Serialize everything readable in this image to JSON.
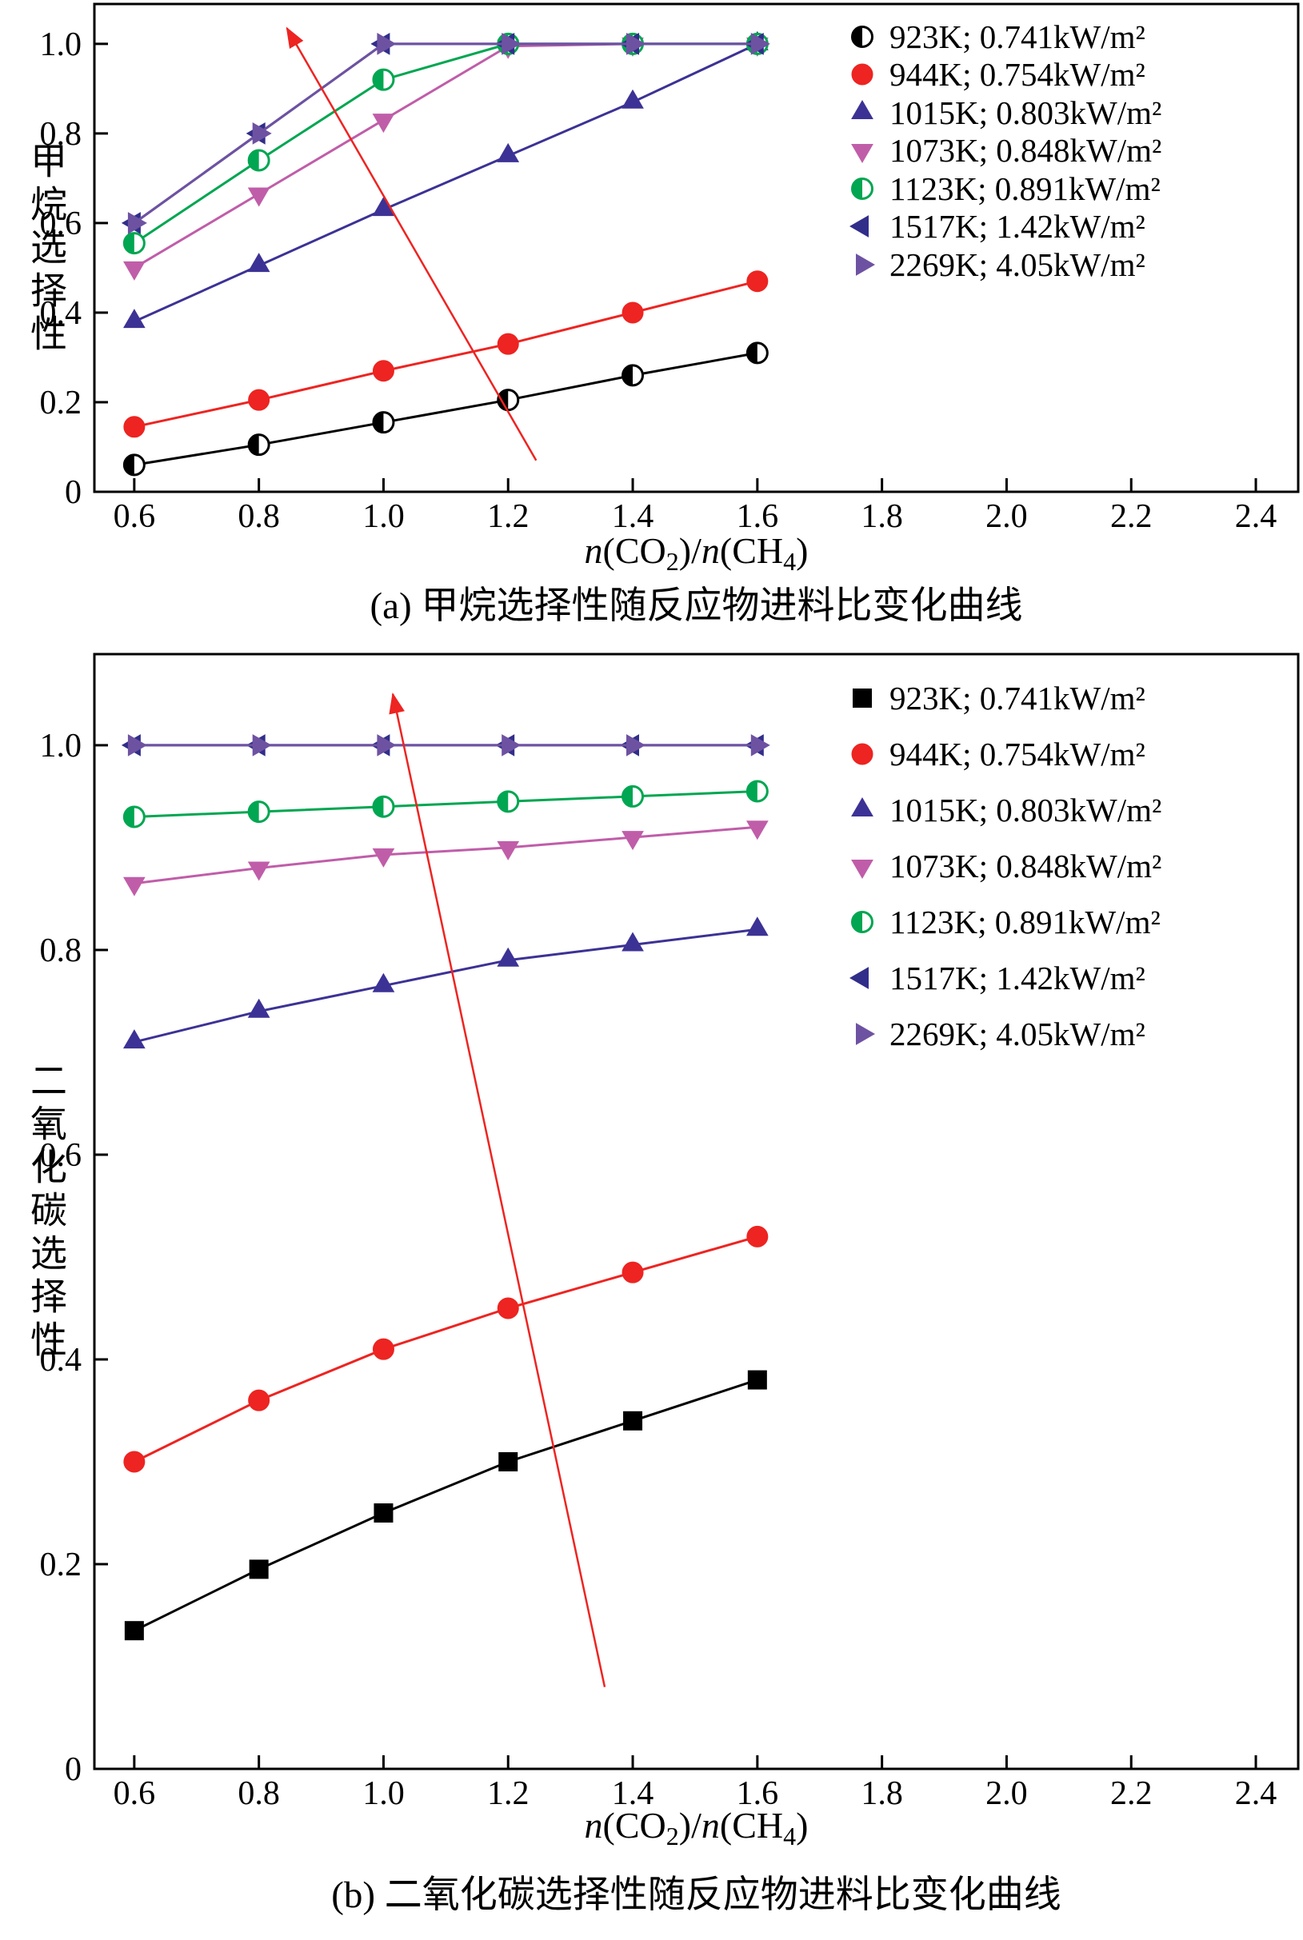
{
  "page": {
    "background": "#ffffff"
  },
  "chart_data": [
    {
      "panel": "a",
      "type": "line",
      "caption": "(a) 甲烷选择性随反应物进料比变化曲线",
      "ylabel": "甲烷选择性",
      "xlabel": "n(CO₂)/n(CH₄)",
      "xlabel_segments": [
        {
          "t": "n",
          "i": true
        },
        {
          "t": "(CO"
        },
        {
          "t": "2",
          "sub": true
        },
        {
          "t": ")/"
        },
        {
          "t": "n",
          "i": true
        },
        {
          "t": "(CH"
        },
        {
          "t": "4",
          "sub": true
        },
        {
          "t": ")"
        }
      ],
      "x_tick_labels": [
        "0.6",
        "0.8",
        "1.0",
        "1.2",
        "1.4",
        "1.6",
        "1.8",
        "2.0",
        "2.2",
        "2.4"
      ],
      "y_tick_labels": [
        "0",
        "0.2",
        "0.4",
        "0.6",
        "0.8",
        "1.0"
      ],
      "xlim": [
        0.536,
        2.468
      ],
      "ylim": [
        0,
        1.089
      ],
      "grid": false,
      "legend_position": "inside-top-right",
      "x": [
        0.6,
        0.8,
        1.0,
        1.2,
        1.4,
        1.6
      ],
      "series": [
        {
          "label": "923K; 0.741kW/m²",
          "marker": "circle-half",
          "color": "#000000",
          "values": [
            0.06,
            0.105,
            0.155,
            0.205,
            0.26,
            0.31
          ]
        },
        {
          "label": "944K; 0.754kW/m²",
          "marker": "circle",
          "color": "#ed2421",
          "values": [
            0.145,
            0.205,
            0.27,
            0.33,
            0.4,
            0.47
          ]
        },
        {
          "label": "1015K; 0.803kW/m²",
          "marker": "triangle-up",
          "color": "#3c3295",
          "values": [
            0.38,
            0.505,
            0.63,
            0.75,
            0.87,
            1.0
          ]
        },
        {
          "label": "1073K; 0.848kW/m²",
          "marker": "triangle-down",
          "color": "#c05da9",
          "values": [
            0.5,
            0.665,
            0.83,
            0.995,
            1.0,
            1.0
          ]
        },
        {
          "label": "1123K; 0.891kW/m²",
          "marker": "circle-half",
          "color": "#00a651",
          "values": [
            0.555,
            0.74,
            0.92,
            1.0,
            1.0,
            1.0
          ]
        },
        {
          "label": "1517K; 1.42kW/m²",
          "marker": "triangle-left",
          "color": "#312e8a",
          "values": [
            0.6,
            0.8,
            1.0,
            1.0,
            1.0,
            1.0
          ]
        },
        {
          "label": "2269K; 4.05kW/m²",
          "marker": "triangle-right",
          "color": "#6e52a2",
          "values": [
            0.6,
            0.8,
            1.0,
            1.0,
            1.0,
            1.0
          ]
        }
      ],
      "arrow": {
        "from": [
          1.245,
          0.07
        ],
        "to": [
          0.845,
          1.035
        ]
      },
      "arrow_color": "#ed2421"
    },
    {
      "panel": "b",
      "type": "line",
      "caption": "(b) 二氧化碳选择性随反应物进料比变化曲线",
      "ylabel": "二氧化碳选择性",
      "xlabel": "n(CO₂)/n(CH₄)",
      "xlabel_segments": [
        {
          "t": "n",
          "i": true
        },
        {
          "t": "(CO"
        },
        {
          "t": "2",
          "sub": true
        },
        {
          "t": ")/"
        },
        {
          "t": "n",
          "i": true
        },
        {
          "t": "(CH"
        },
        {
          "t": "4",
          "sub": true
        },
        {
          "t": ")"
        }
      ],
      "x_tick_labels": [
        "0.6",
        "0.8",
        "1.0",
        "1.2",
        "1.4",
        "1.6",
        "1.8",
        "2.0",
        "2.2",
        "2.4"
      ],
      "y_tick_labels": [
        "0",
        "0.2",
        "0.4",
        "0.6",
        "0.8",
        "1.0"
      ],
      "xlim": [
        0.536,
        2.468
      ],
      "ylim": [
        0,
        1.089
      ],
      "grid": false,
      "legend_position": "inside-top-right",
      "x": [
        0.6,
        0.8,
        1.0,
        1.2,
        1.4,
        1.6
      ],
      "series": [
        {
          "label": "923K; 0.741kW/m²",
          "marker": "square",
          "color": "#000000",
          "values": [
            0.135,
            0.195,
            0.25,
            0.3,
            0.34,
            0.38
          ]
        },
        {
          "label": "944K; 0.754kW/m²",
          "marker": "circle",
          "color": "#ed2421",
          "values": [
            0.3,
            0.36,
            0.41,
            0.45,
            0.485,
            0.52
          ]
        },
        {
          "label": "1015K; 0.803kW/m²",
          "marker": "triangle-up",
          "color": "#3c3295",
          "values": [
            0.71,
            0.74,
            0.765,
            0.79,
            0.805,
            0.82
          ]
        },
        {
          "label": "1073K; 0.848kW/m²",
          "marker": "triangle-down",
          "color": "#c05da9",
          "values": [
            0.865,
            0.88,
            0.893,
            0.9,
            0.91,
            0.92
          ]
        },
        {
          "label": "1123K; 0.891kW/m²",
          "marker": "circle-half",
          "color": "#00a651",
          "values": [
            0.93,
            0.935,
            0.94,
            0.945,
            0.95,
            0.955
          ]
        },
        {
          "label": "1517K; 1.42kW/m²",
          "marker": "triangle-left",
          "color": "#312e8a",
          "values": [
            1.0,
            1.0,
            1.0,
            1.0,
            1.0,
            1.0
          ]
        },
        {
          "label": "2269K; 4.05kW/m²",
          "marker": "triangle-right",
          "color": "#6e52a2",
          "values": [
            1.0,
            1.0,
            1.0,
            1.0,
            1.0,
            1.0
          ]
        }
      ],
      "arrow": {
        "from": [
          1.355,
          0.08
        ],
        "to": [
          1.015,
          1.05
        ]
      },
      "arrow_color": "#ed2421"
    }
  ]
}
